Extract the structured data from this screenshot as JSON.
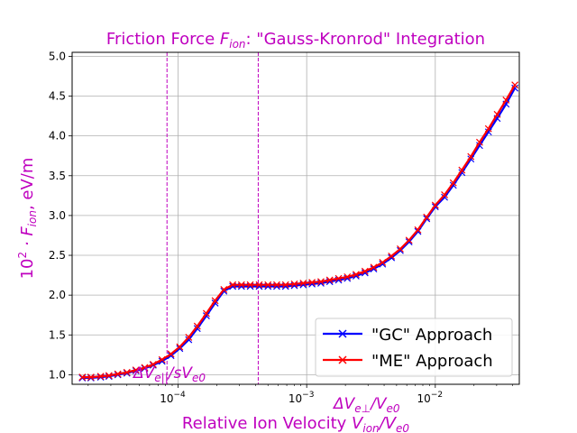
{
  "chart_data": {
    "type": "line",
    "title": {
      "prefix": "Friction Force ",
      "symbol": "F",
      "symbol_sub": "ion",
      "suffix": ": \"Gauss-Kronrod\" Integration"
    },
    "xlabel": {
      "text": "Relative Ion Velocity  ",
      "expr": "V",
      "sub1": "ion",
      "sep": "/V",
      "sub2": "e0"
    },
    "ylabel": {
      "prefix": "10",
      "exp": "2",
      "dot": " · F",
      "sub": "ion",
      "suffix": ", eV/m"
    },
    "x_scale": "log",
    "xlim": [
      1.5e-05,
      0.045
    ],
    "ylim": [
      0.88,
      5.05
    ],
    "y_ticks": [
      1.0,
      1.5,
      2.0,
      2.5,
      3.0,
      3.5,
      4.0,
      4.5,
      5.0
    ],
    "y_tick_labels": [
      "1.0",
      "1.5",
      "2.0",
      "2.5",
      "3.0",
      "3.5",
      "4.0",
      "4.5",
      "5.0"
    ],
    "x_ticks": [
      0.0001,
      0.001,
      0.01
    ],
    "x_tick_labels": [
      {
        "base": "10",
        "exp": "−4"
      },
      {
        "base": "10",
        "exp": "−3"
      },
      {
        "base": "10",
        "exp": "−2"
      }
    ],
    "grid": true,
    "legend_position": "lower-right",
    "vlines": [
      {
        "x": 8.2e-05,
        "color": "#bf00bf",
        "style": "dashed"
      },
      {
        "x": 0.00042,
        "color": "#bf00bf",
        "style": "dashed"
      }
    ],
    "annotations": [
      {
        "id": "par",
        "text_pre": "ΔV",
        "sub": "e||",
        "text_mid": "/sV",
        "sub2": "e0"
      },
      {
        "id": "perp",
        "text_pre": "ΔV",
        "sub": "e⊥",
        "text_mid": "/V",
        "sub2": "e0"
      }
    ],
    "series": [
      {
        "name": "\"GC\" Approach",
        "color": "#0000ff",
        "marker": "x",
        "x": [
          1.8e-05,
          2.1e-05,
          2.5e-05,
          2.9e-05,
          3.4e-05,
          4e-05,
          4.7e-05,
          5.5e-05,
          6.4e-05,
          7.5e-05,
          8.8e-05,
          0.000103,
          0.000121,
          0.000141,
          0.000166,
          0.000194,
          0.000227,
          0.000266,
          0.000311,
          0.000364,
          0.000427,
          0.0005,
          0.000585,
          0.000685,
          0.000802,
          0.00094,
          0.0011,
          0.00129,
          0.00151,
          0.00177,
          0.00207,
          0.00242,
          0.00284,
          0.00332,
          0.00389,
          0.00456,
          0.00534,
          0.00625,
          0.00732,
          0.00857,
          0.01,
          0.0118,
          0.0138,
          0.0161,
          0.0189,
          0.0221,
          0.0259,
          0.0303,
          0.0355,
          0.0416
        ],
        "y": [
          0.96,
          0.96,
          0.97,
          0.98,
          1.0,
          1.02,
          1.05,
          1.08,
          1.12,
          1.17,
          1.24,
          1.33,
          1.44,
          1.58,
          1.74,
          1.9,
          2.05,
          2.11,
          2.11,
          2.11,
          2.11,
          2.11,
          2.11,
          2.11,
          2.12,
          2.13,
          2.14,
          2.15,
          2.17,
          2.19,
          2.21,
          2.24,
          2.28,
          2.33,
          2.39,
          2.47,
          2.56,
          2.67,
          2.8,
          2.96,
          3.11,
          3.23,
          3.38,
          3.54,
          3.71,
          3.88,
          4.05,
          4.22,
          4.4,
          4.6
        ]
      },
      {
        "name": "\"ME\" Approach",
        "color": "#ff0000",
        "marker": "x",
        "x": [
          1.8e-05,
          2.1e-05,
          2.5e-05,
          2.9e-05,
          3.4e-05,
          4e-05,
          4.7e-05,
          5.5e-05,
          6.4e-05,
          7.5e-05,
          8.8e-05,
          0.000103,
          0.000121,
          0.000141,
          0.000166,
          0.000194,
          0.000227,
          0.000266,
          0.000311,
          0.000364,
          0.000427,
          0.0005,
          0.000585,
          0.000685,
          0.000802,
          0.00094,
          0.0011,
          0.00129,
          0.00151,
          0.00177,
          0.00207,
          0.00242,
          0.00284,
          0.00332,
          0.00389,
          0.00456,
          0.00534,
          0.00625,
          0.00732,
          0.00857,
          0.01,
          0.0118,
          0.0138,
          0.0161,
          0.0189,
          0.0221,
          0.0259,
          0.0303,
          0.0355,
          0.0416
        ],
        "y": [
          0.97,
          0.97,
          0.98,
          0.99,
          1.01,
          1.03,
          1.06,
          1.09,
          1.13,
          1.19,
          1.26,
          1.35,
          1.47,
          1.61,
          1.77,
          1.93,
          2.07,
          2.13,
          2.13,
          2.13,
          2.13,
          2.13,
          2.13,
          2.13,
          2.14,
          2.15,
          2.16,
          2.17,
          2.19,
          2.21,
          2.23,
          2.26,
          2.3,
          2.35,
          2.41,
          2.49,
          2.58,
          2.69,
          2.82,
          2.98,
          3.13,
          3.26,
          3.41,
          3.57,
          3.74,
          3.92,
          4.09,
          4.27,
          4.45,
          4.64
        ]
      }
    ]
  }
}
